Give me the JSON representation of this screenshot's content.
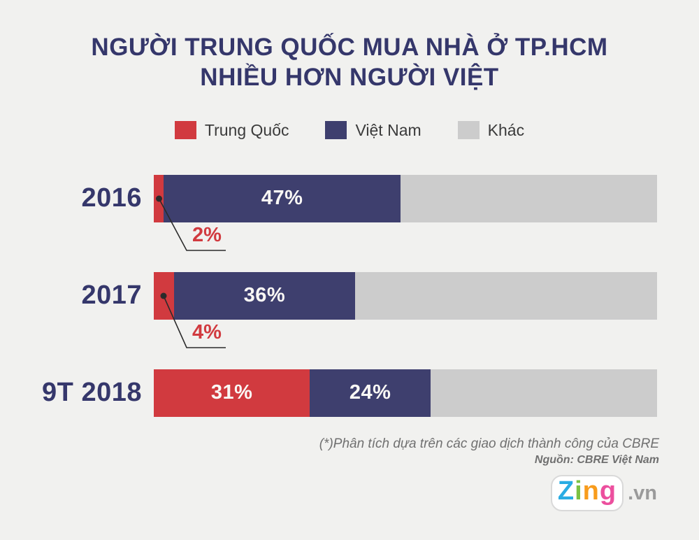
{
  "title": {
    "line1": "NGƯỜI TRUNG QUỐC MUA NHÀ Ở TP.HCM",
    "line2": "NHIỀU HƠN NGƯỜI VIỆT"
  },
  "chart_data": {
    "type": "bar",
    "stacked": true,
    "orientation": "horizontal",
    "categories": [
      "2016",
      "2017",
      "9T 2018"
    ],
    "series": [
      {
        "name": "Trung Quốc",
        "color": "#d13a3f",
        "values": [
          2,
          4,
          31
        ]
      },
      {
        "name": "Việt Nam",
        "color": "#3e3f6e",
        "values": [
          47,
          36,
          24
        ]
      },
      {
        "name": "Khác",
        "color": "#cccccc",
        "values": [
          51,
          60,
          45
        ]
      }
    ],
    "xlim": [
      0,
      100
    ],
    "value_labels": [
      [
        "2%",
        "47%",
        ""
      ],
      [
        "4%",
        "36%",
        ""
      ],
      [
        "31%",
        "24%",
        ""
      ]
    ],
    "legend_position": "top"
  },
  "footer": {
    "note": "(*)Phân tích dựa trên các giao dịch thành công của CBRE",
    "source": "Nguồn: CBRE Việt Nam",
    "logo": {
      "letters": [
        {
          "char": "Z",
          "color": "#29ace3"
        },
        {
          "char": "i",
          "color": "#7bc143"
        },
        {
          "char": "n",
          "color": "#f89c1c"
        },
        {
          "char": "g",
          "color": "#ec4f9e"
        }
      ],
      "suffix": ".vn",
      "suffix_color": "#9a9a9a"
    }
  },
  "colors": {
    "background": "#f1f1ef",
    "title": "#35376b",
    "category_label": "#35376b",
    "callout_text": "#d13a3f",
    "legend_text": "#3b3b3b",
    "bar_value_text": "#faf8f5",
    "footer_text": "#707070",
    "callout_line": "#2b2b2b"
  }
}
